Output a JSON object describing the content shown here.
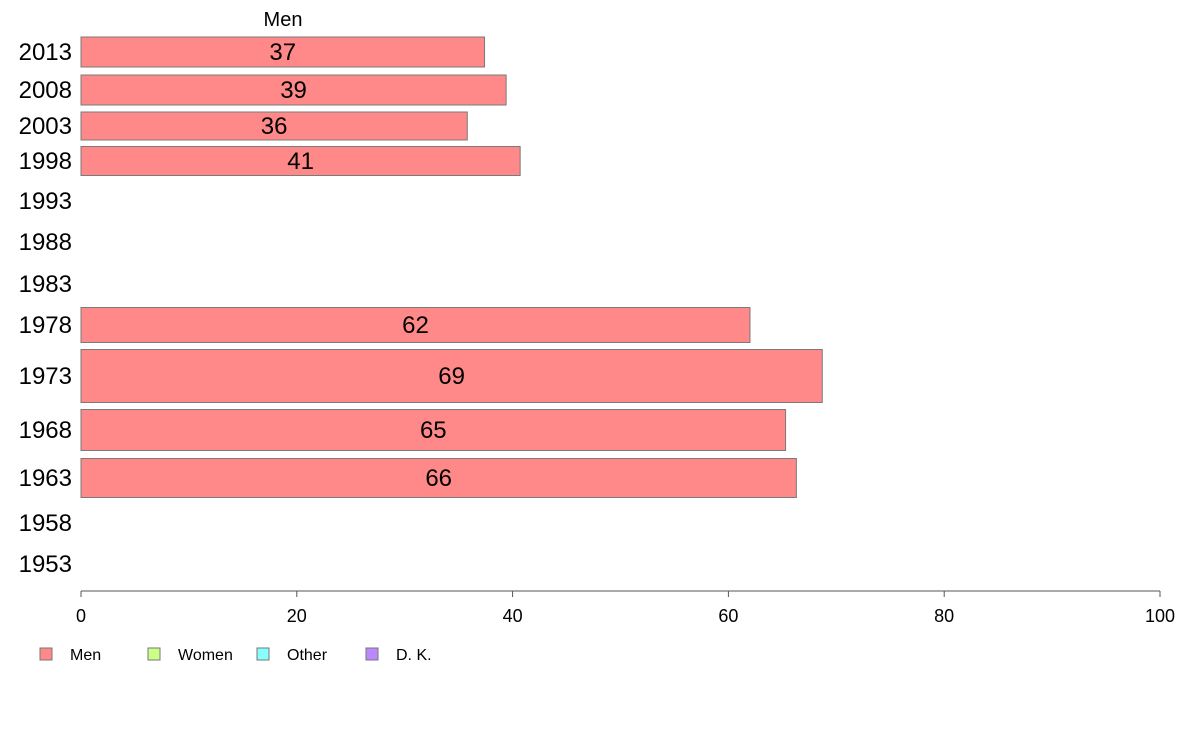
{
  "chart_data": {
    "type": "bar",
    "orientation": "horizontal",
    "series_header": "Men",
    "categories": [
      "2013",
      "2008",
      "2003",
      "1998",
      "1993",
      "1988",
      "1983",
      "1978",
      "1973",
      "1968",
      "1963",
      "1958",
      "1953"
    ],
    "series": [
      {
        "name": "Men",
        "color": "#ff8888",
        "values": [
          37.4,
          39.4,
          35.8,
          40.7,
          null,
          null,
          null,
          62.0,
          68.7,
          65.3,
          66.3,
          null,
          null
        ],
        "labels": [
          "37",
          "39",
          "36",
          "41",
          null,
          null,
          null,
          "62",
          "69",
          "65",
          "66",
          null,
          null
        ]
      }
    ],
    "xlim": [
      0,
      100
    ],
    "xticks": [
      "0",
      "20",
      "40",
      "60",
      "80",
      "100"
    ],
    "grid": false,
    "legend": {
      "placement": "bottom-left",
      "items": [
        {
          "label": "Men",
          "color": "#ff8888"
        },
        {
          "label": "Women",
          "color": "#ccff88"
        },
        {
          "label": "Other",
          "color": "#88ffff"
        },
        {
          "label": "D. K.",
          "color": "#bb88ff"
        }
      ]
    }
  }
}
